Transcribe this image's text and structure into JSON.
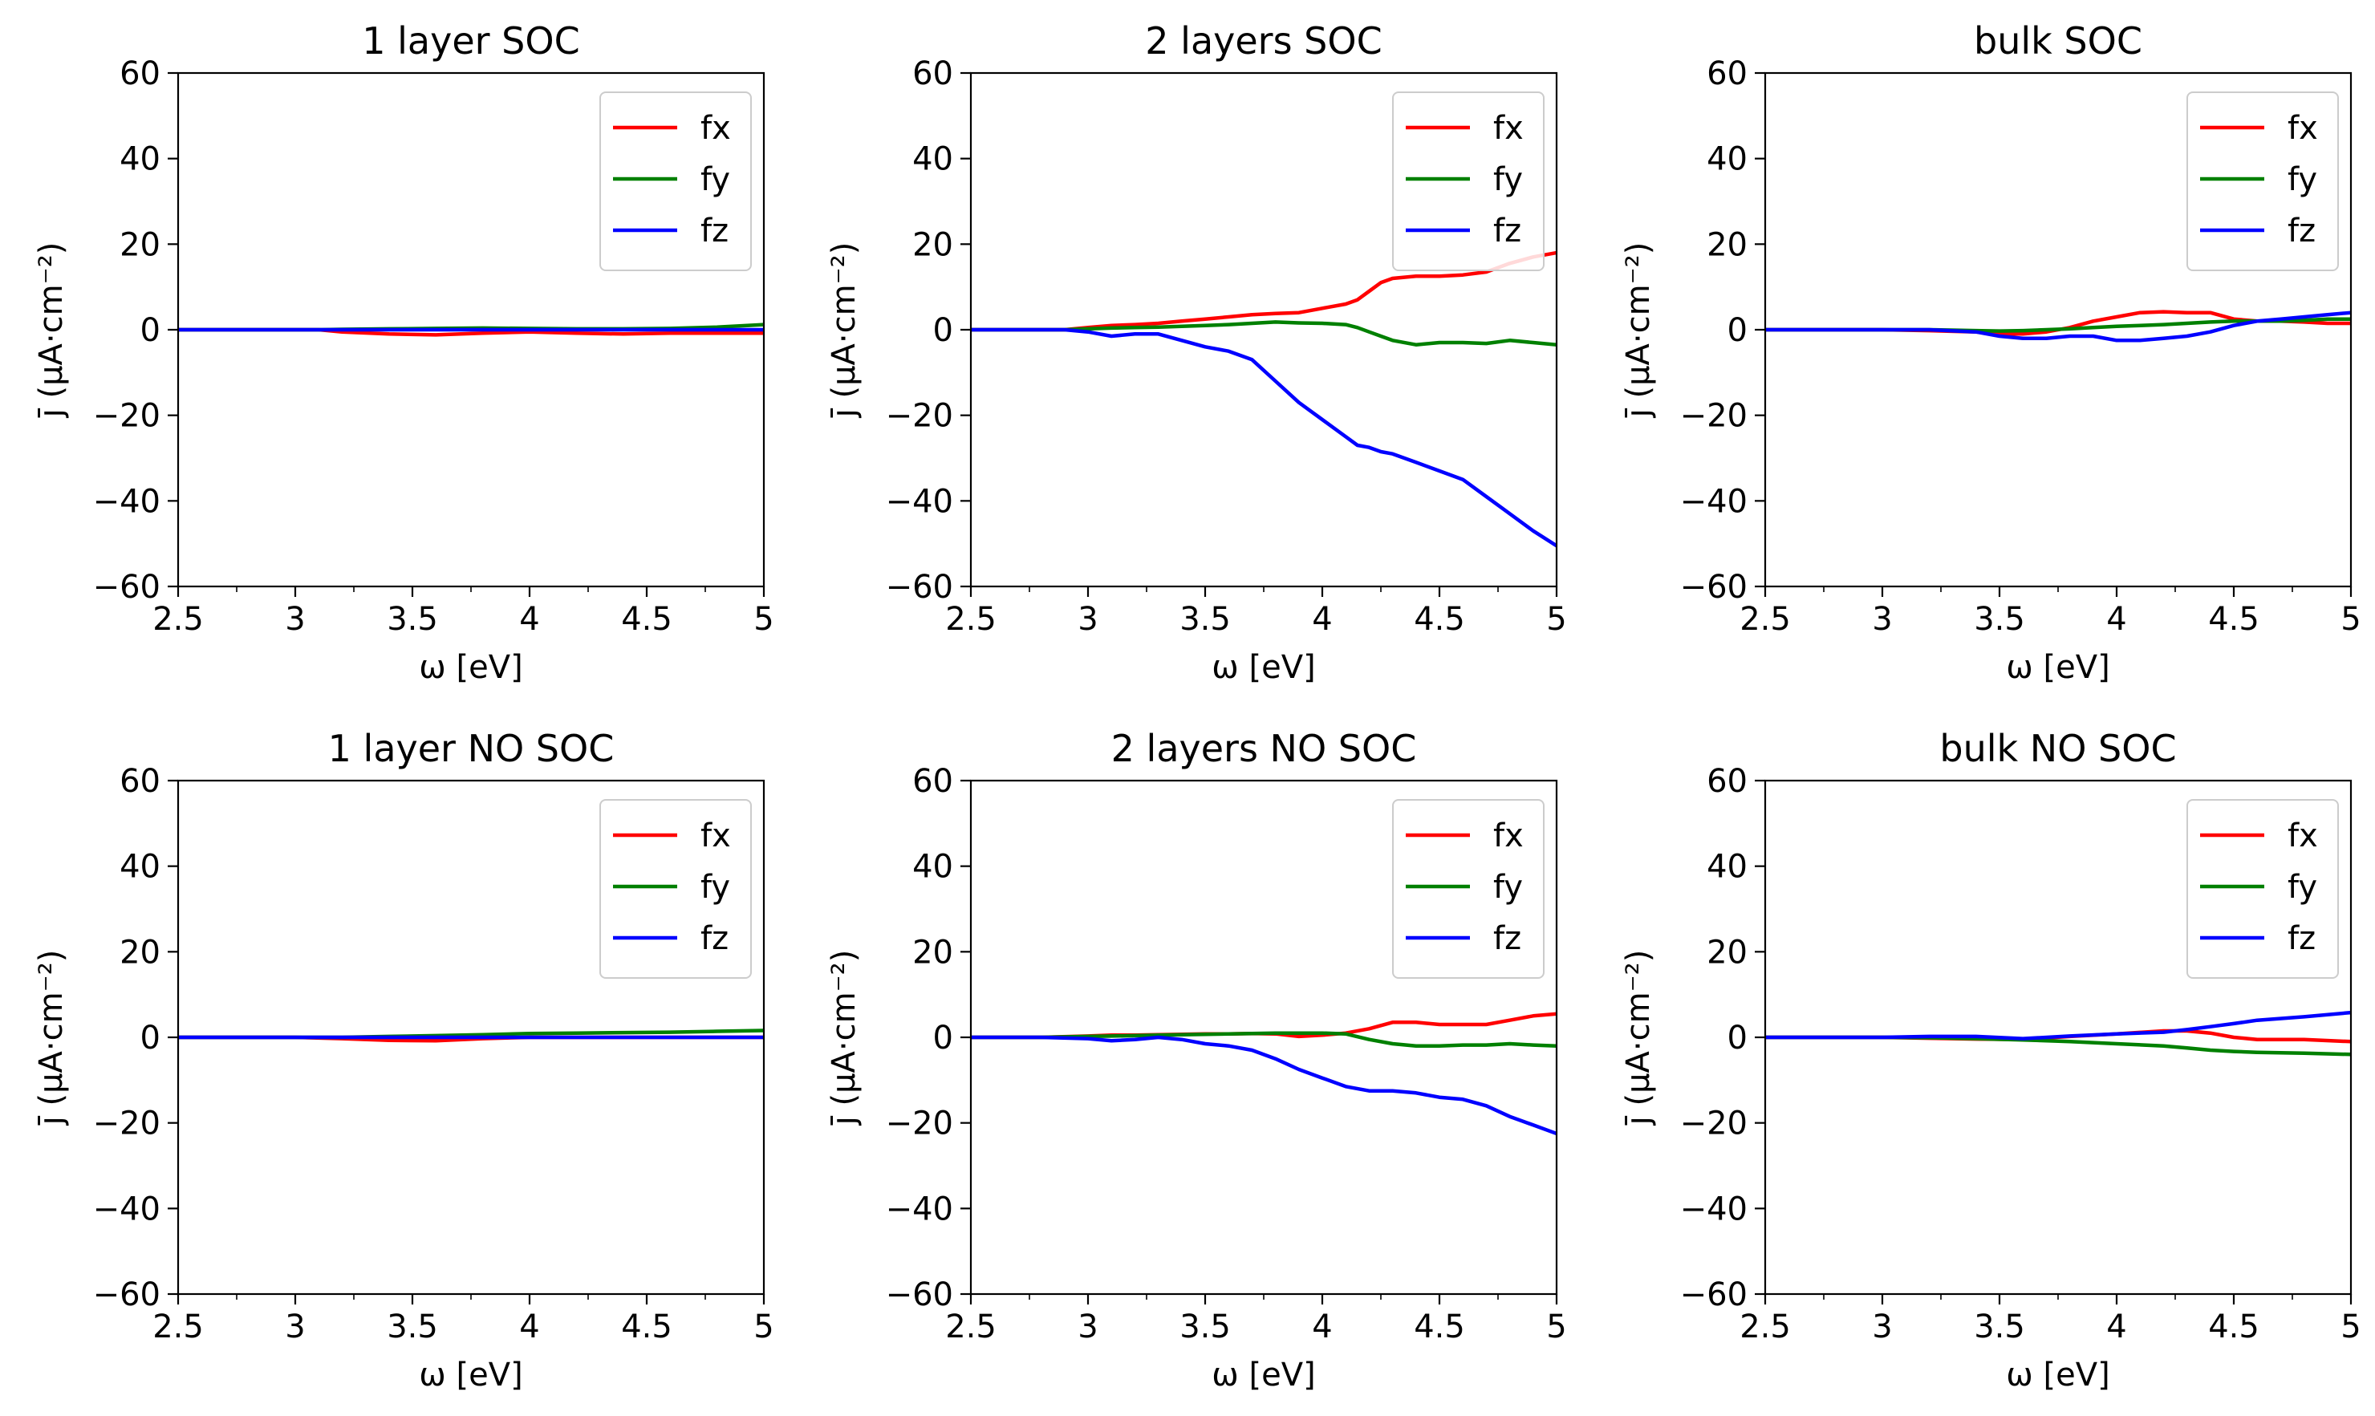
{
  "chart_data": [
    {
      "type": "line",
      "title": "1 layer  SOC",
      "xlabel": "ω [eV]",
      "ylabel": "j̄ (μA·cm⁻²)",
      "xlim": [
        2.5,
        5
      ],
      "ylim": [
        -60,
        60
      ],
      "x_ticks": [
        2.5,
        3,
        3.5,
        4,
        4.5,
        5
      ],
      "x_tick_labels": [
        "2.5",
        "3",
        "3.5",
        "4",
        "4.5",
        "5"
      ],
      "y_ticks": [
        60,
        40,
        20,
        0,
        -20,
        -40,
        -60
      ],
      "y_tick_labels": [
        "60",
        "40",
        "20",
        "0",
        "−20",
        "−40",
        "−60"
      ],
      "legend_position": "top-right",
      "x": [
        2.5,
        2.75,
        3.0,
        3.1,
        3.2,
        3.4,
        3.6,
        3.8,
        4.0,
        4.2,
        4.4,
        4.6,
        4.8,
        5.0
      ],
      "series": [
        {
          "name": "fx",
          "color": "#ff0000",
          "values": [
            0,
            0,
            0,
            0,
            -0.5,
            -1.0,
            -1.2,
            -0.8,
            -0.5,
            -0.8,
            -1.0,
            -0.8,
            -0.8,
            -0.8
          ]
        },
        {
          "name": "fy",
          "color": "#008000",
          "values": [
            0,
            0,
            0,
            0,
            0.1,
            0.2,
            0.3,
            0.4,
            0.3,
            0.2,
            0.2,
            0.3,
            0.6,
            1.2
          ]
        },
        {
          "name": "fz",
          "color": "#0000ff",
          "values": [
            0,
            0,
            0,
            0,
            0,
            0,
            0,
            0,
            0,
            0,
            0,
            0,
            0,
            0
          ]
        }
      ]
    },
    {
      "type": "line",
      "title": "2 layers SOC",
      "xlabel": "ω [eV]",
      "ylabel": "j̄ (μA·cm⁻²)",
      "xlim": [
        2.5,
        5
      ],
      "ylim": [
        -60,
        60
      ],
      "x_ticks": [
        2.5,
        3,
        3.5,
        4,
        4.5,
        5
      ],
      "x_tick_labels": [
        "2.5",
        "3",
        "3.5",
        "4",
        "4.5",
        "5"
      ],
      "y_ticks": [
        60,
        40,
        20,
        0,
        -20,
        -40,
        -60
      ],
      "y_tick_labels": [
        "60",
        "40",
        "20",
        "0",
        "−20",
        "−40",
        "−60"
      ],
      "legend_position": "top-right",
      "x": [
        2.5,
        2.7,
        2.9,
        3.0,
        3.1,
        3.2,
        3.3,
        3.4,
        3.5,
        3.6,
        3.7,
        3.8,
        3.9,
        4.0,
        4.1,
        4.15,
        4.2,
        4.25,
        4.3,
        4.4,
        4.5,
        4.6,
        4.7,
        4.8,
        4.9,
        5.0
      ],
      "series": [
        {
          "name": "fx",
          "color": "#ff0000",
          "values": [
            0,
            0,
            0,
            0.5,
            1.0,
            1.2,
            1.5,
            2.0,
            2.5,
            3.0,
            3.5,
            3.8,
            4.0,
            5.0,
            6.0,
            7.0,
            9.0,
            11.0,
            12.0,
            12.5,
            12.5,
            12.8,
            13.5,
            15.5,
            17.0,
            18.0
          ]
        },
        {
          "name": "fy",
          "color": "#008000",
          "values": [
            0,
            0,
            0,
            0.2,
            0.4,
            0.5,
            0.6,
            0.8,
            1.0,
            1.2,
            1.5,
            1.8,
            1.6,
            1.5,
            1.2,
            0.5,
            -0.5,
            -1.5,
            -2.5,
            -3.5,
            -3.0,
            -3.0,
            -3.2,
            -2.5,
            -3.0,
            -3.5
          ]
        },
        {
          "name": "fz",
          "color": "#0000ff",
          "values": [
            0,
            0,
            0,
            -0.5,
            -1.5,
            -1.0,
            -1.0,
            -2.5,
            -4.0,
            -5.0,
            -7.0,
            -12.0,
            -17.0,
            -21.0,
            -25.0,
            -27.0,
            -27.5,
            -28.5,
            -29.0,
            -31.0,
            -33.0,
            -35.0,
            -39.0,
            -43.0,
            -47.0,
            -50.5
          ]
        }
      ]
    },
    {
      "type": "line",
      "title": "bulk SOC",
      "xlabel": "ω [eV]",
      "ylabel": "j̄ (μA·cm⁻²)",
      "xlim": [
        2.5,
        5
      ],
      "ylim": [
        -60,
        60
      ],
      "x_ticks": [
        2.5,
        3,
        3.5,
        4,
        4.5,
        5
      ],
      "x_tick_labels": [
        "2.5",
        "3",
        "3.5",
        "4",
        "4.5",
        "5"
      ],
      "y_ticks": [
        60,
        40,
        20,
        0,
        -20,
        -40,
        -60
      ],
      "y_tick_labels": [
        "60",
        "40",
        "20",
        "0",
        "−20",
        "−40",
        "−60"
      ],
      "legend_position": "top-right",
      "x": [
        2.5,
        2.8,
        3.0,
        3.2,
        3.4,
        3.5,
        3.6,
        3.7,
        3.8,
        3.9,
        4.0,
        4.1,
        4.2,
        4.3,
        4.4,
        4.5,
        4.6,
        4.7,
        4.8,
        4.9,
        5.0
      ],
      "series": [
        {
          "name": "fx",
          "color": "#ff0000",
          "values": [
            0,
            0,
            0,
            -0.2,
            -0.5,
            -1.0,
            -1.0,
            -0.5,
            0.5,
            2.0,
            3.0,
            4.0,
            4.2,
            4.0,
            4.0,
            2.5,
            2.0,
            2.0,
            1.8,
            1.5,
            1.5
          ]
        },
        {
          "name": "fy",
          "color": "#008000",
          "values": [
            0,
            0,
            0,
            0,
            -0.2,
            -0.3,
            -0.2,
            0,
            0.2,
            0.5,
            0.8,
            1.0,
            1.2,
            1.5,
            1.8,
            2.0,
            2.0,
            2.0,
            2.2,
            2.5,
            2.5
          ]
        },
        {
          "name": "fz",
          "color": "#0000ff",
          "values": [
            0,
            0,
            0,
            0,
            -0.5,
            -1.5,
            -2.0,
            -2.0,
            -1.5,
            -1.5,
            -2.5,
            -2.5,
            -2.0,
            -1.5,
            -0.5,
            1.0,
            2.0,
            2.5,
            3.0,
            3.5,
            4.0
          ]
        }
      ]
    },
    {
      "type": "line",
      "title": "1 layer NO SOC",
      "xlabel": "ω [eV]",
      "ylabel": "j̄ (μA·cm⁻²)",
      "xlim": [
        2.5,
        5
      ],
      "ylim": [
        -60,
        60
      ],
      "x_ticks": [
        2.5,
        3,
        3.5,
        4,
        4.5,
        5
      ],
      "x_tick_labels": [
        "2.5",
        "3",
        "3.5",
        "4",
        "4.5",
        "5"
      ],
      "y_ticks": [
        60,
        40,
        20,
        0,
        -20,
        -40,
        -60
      ],
      "y_tick_labels": [
        "60",
        "40",
        "20",
        "0",
        "−20",
        "−40",
        "−60"
      ],
      "legend_position": "top-right",
      "x": [
        2.5,
        2.75,
        3.0,
        3.2,
        3.4,
        3.6,
        3.8,
        4.0,
        4.2,
        4.4,
        4.6,
        4.8,
        5.0
      ],
      "series": [
        {
          "name": "fx",
          "color": "#ff0000",
          "values": [
            0,
            0,
            0,
            -0.3,
            -0.7,
            -0.8,
            -0.3,
            0,
            0,
            0,
            0,
            0,
            0
          ]
        },
        {
          "name": "fy",
          "color": "#008000",
          "values": [
            0,
            0,
            0,
            0,
            0.2,
            0.4,
            0.6,
            0.9,
            1.0,
            1.1,
            1.2,
            1.4,
            1.6
          ]
        },
        {
          "name": "fz",
          "color": "#0000ff",
          "values": [
            0,
            0,
            0,
            0,
            0,
            0,
            0,
            0,
            0,
            0,
            0,
            0,
            0
          ]
        }
      ]
    },
    {
      "type": "line",
      "title": "2 layers NO SOC",
      "xlabel": "ω [eV]",
      "ylabel": "j̄ (μA·cm⁻²)",
      "xlim": [
        2.5,
        5
      ],
      "ylim": [
        -60,
        60
      ],
      "x_ticks": [
        2.5,
        3,
        3.5,
        4,
        4.5,
        5
      ],
      "x_tick_labels": [
        "2.5",
        "3",
        "3.5",
        "4",
        "4.5",
        "5"
      ],
      "y_ticks": [
        60,
        40,
        20,
        0,
        -20,
        -40,
        -60
      ],
      "y_tick_labels": [
        "60",
        "40",
        "20",
        "0",
        "−20",
        "−40",
        "−60"
      ],
      "legend_position": "top-right",
      "x": [
        2.5,
        2.8,
        3.0,
        3.1,
        3.2,
        3.3,
        3.4,
        3.5,
        3.6,
        3.7,
        3.8,
        3.9,
        4.0,
        4.1,
        4.2,
        4.3,
        4.4,
        4.5,
        4.6,
        4.7,
        4.8,
        4.9,
        5.0
      ],
      "series": [
        {
          "name": "fx",
          "color": "#ff0000",
          "values": [
            0,
            0,
            0.3,
            0.5,
            0.5,
            0.6,
            0.7,
            0.8,
            0.8,
            0.9,
            0.8,
            0.2,
            0.5,
            1.0,
            2.0,
            3.5,
            3.5,
            3.0,
            3.0,
            3.0,
            4.0,
            5.0,
            5.5
          ]
        },
        {
          "name": "fy",
          "color": "#008000",
          "values": [
            0,
            0,
            0.2,
            0.3,
            0.4,
            0.5,
            0.6,
            0.7,
            0.8,
            0.9,
            1.0,
            1.0,
            1.0,
            0.8,
            -0.5,
            -1.5,
            -2.0,
            -2.0,
            -1.8,
            -1.8,
            -1.5,
            -1.8,
            -2.0
          ]
        },
        {
          "name": "fz",
          "color": "#0000ff",
          "values": [
            0,
            0,
            -0.3,
            -0.8,
            -0.5,
            0,
            -0.5,
            -1.5,
            -2.0,
            -3.0,
            -5.0,
            -7.5,
            -9.5,
            -11.5,
            -12.5,
            -12.5,
            -13.0,
            -14.0,
            -14.5,
            -16.0,
            -18.5,
            -20.5,
            -22.5
          ]
        }
      ]
    },
    {
      "type": "line",
      "title": "bulk NO SOC",
      "xlabel": "ω [eV]",
      "ylabel": "j̄ (μA·cm⁻²)",
      "xlim": [
        2.5,
        5
      ],
      "ylim": [
        -60,
        60
      ],
      "x_ticks": [
        2.5,
        3,
        3.5,
        4,
        4.5,
        5
      ],
      "x_tick_labels": [
        "2.5",
        "3",
        "3.5",
        "4",
        "4.5",
        "5"
      ],
      "y_ticks": [
        60,
        40,
        20,
        0,
        -20,
        -40,
        -60
      ],
      "y_tick_labels": [
        "60",
        "40",
        "20",
        "0",
        "−20",
        "−40",
        "−60"
      ],
      "legend_position": "top-right",
      "x": [
        2.5,
        2.8,
        3.0,
        3.2,
        3.4,
        3.6,
        3.8,
        4.0,
        4.2,
        4.3,
        4.4,
        4.5,
        4.6,
        4.8,
        5.0
      ],
      "series": [
        {
          "name": "fx",
          "color": "#ff0000",
          "values": [
            0,
            0,
            0,
            -0.2,
            -0.4,
            -0.5,
            0.2,
            0.8,
            1.5,
            1.5,
            1.0,
            0,
            -0.5,
            -0.5,
            -1.0
          ]
        },
        {
          "name": "fy",
          "color": "#008000",
          "values": [
            0,
            0,
            0,
            -0.1,
            -0.3,
            -0.6,
            -1.0,
            -1.5,
            -2.0,
            -2.5,
            -3.0,
            -3.3,
            -3.5,
            -3.7,
            -4.0
          ]
        },
        {
          "name": "fz",
          "color": "#0000ff",
          "values": [
            0,
            0,
            0,
            0.2,
            0.2,
            -0.3,
            0.3,
            0.8,
            1.2,
            1.8,
            2.5,
            3.2,
            4.0,
            4.8,
            5.8
          ]
        }
      ]
    }
  ]
}
